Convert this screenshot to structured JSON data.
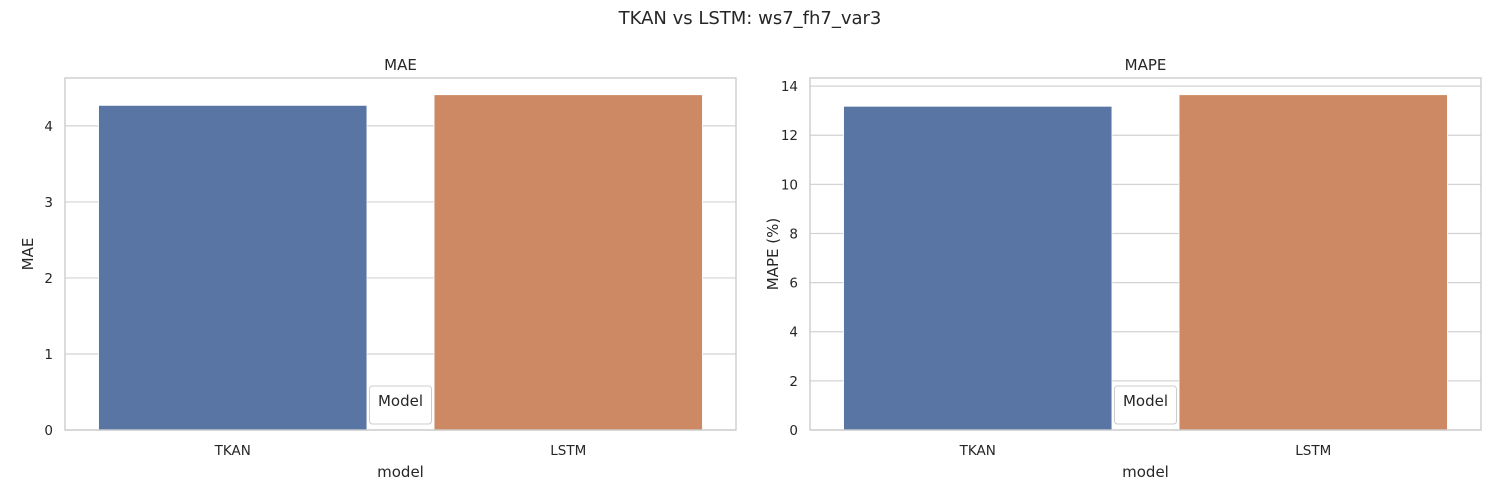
{
  "figure": {
    "title": "TKAN vs LSTM: ws7_fh7_var3"
  },
  "colors": {
    "TKAN": "#5875a4",
    "LSTM": "#cc8963",
    "grid": "#d3d3d3",
    "spine": "#cccccc",
    "text": "#262626"
  },
  "chart_data": [
    {
      "type": "bar",
      "title": "MAE",
      "xlabel": "model",
      "ylabel": "MAE",
      "categories": [
        "TKAN",
        "LSTM"
      ],
      "values": [
        4.27,
        4.41
      ],
      "ylim": [
        0,
        4.63
      ],
      "yticks": [
        0,
        1,
        2,
        3,
        4
      ],
      "ytick_labels": [
        "0",
        "1",
        "2",
        "3",
        "4"
      ],
      "grid": true,
      "legend": {
        "title": "Model",
        "placement": "lower center"
      }
    },
    {
      "type": "bar",
      "title": "MAPE",
      "xlabel": "model",
      "ylabel": "MAPE (%)",
      "categories": [
        "TKAN",
        "LSTM"
      ],
      "values": [
        13.18,
        13.65
      ],
      "ylim": [
        0,
        14.33
      ],
      "yticks": [
        0,
        2,
        4,
        6,
        8,
        10,
        12,
        14
      ],
      "ytick_labels": [
        "0",
        "2",
        "4",
        "6",
        "8",
        "10",
        "12",
        "14"
      ],
      "grid": true,
      "legend": {
        "title": "Model",
        "placement": "lower center"
      }
    }
  ]
}
